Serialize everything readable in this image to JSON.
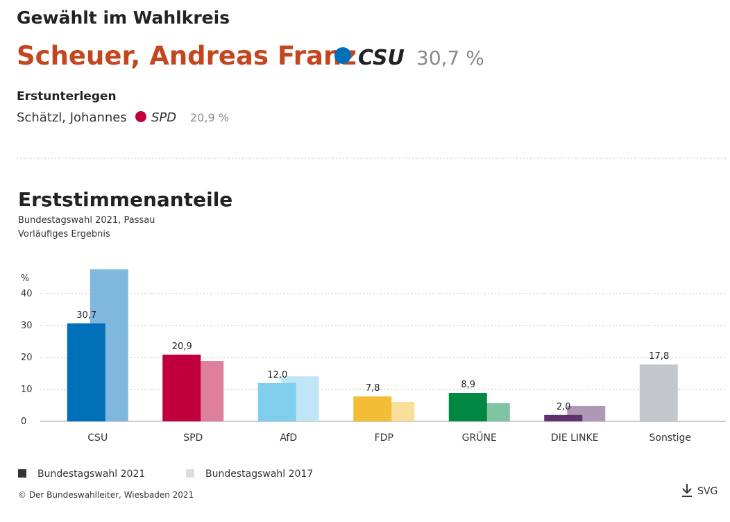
{
  "header": {
    "title": "Gewählt im Wahlkreis",
    "winner": "Scheuer, Andreas Franz",
    "winner_party": "CSU",
    "winner_share": "30,7 %",
    "runner_up_label": "Erstunterlegen",
    "runner_up": "Schätzl, Johannes",
    "runner_up_party": "SPD",
    "runner_up_share": "20,9 %"
  },
  "chart_data": {
    "type": "bar",
    "title": "Erststimmenanteile",
    "subtitle": "Bundestagswahl 2021, Passau",
    "note": "Vorläufiges Ergebnis",
    "y_label": "%",
    "categories": [
      "CSU",
      "SPD",
      "AfD",
      "FDP",
      "GRÜNE",
      "DIE LINKE",
      "Sonstige"
    ],
    "series": [
      {
        "name": "Bundestagswahl 2021",
        "color": "#333333",
        "colors": [
          "#0070b8",
          "#c0003d",
          "#80cdec",
          "#f4bd36",
          "#008842",
          "#5f316e",
          "#c1c7cb"
        ],
        "values": [
          30.7,
          20.9,
          12.0,
          7.8,
          8.9,
          2.0,
          17.8
        ],
        "value_labels": [
          "30,7",
          "20,9",
          "12,0",
          "7,8",
          "8,9",
          "2,0",
          "17,8"
        ]
      },
      {
        "name": "Bundestagswahl 2017",
        "color": "#dddddd",
        "colors": [
          "#80b7dc",
          "#df7f9e",
          "#c0e6f6",
          "#fadf9a",
          "#7fc4a1",
          "#af98b7",
          null
        ],
        "values": [
          47.6,
          18.9,
          14.1,
          6.1,
          5.7,
          4.8,
          null
        ]
      }
    ],
    "ylim": [
      0,
      50
    ],
    "yticks": [
      0,
      10,
      20,
      30,
      40
    ],
    "grid": true
  },
  "footer": {
    "copyright": "© Der Bundeswahlleiter, Wiesbaden 2021",
    "download": "SVG"
  }
}
